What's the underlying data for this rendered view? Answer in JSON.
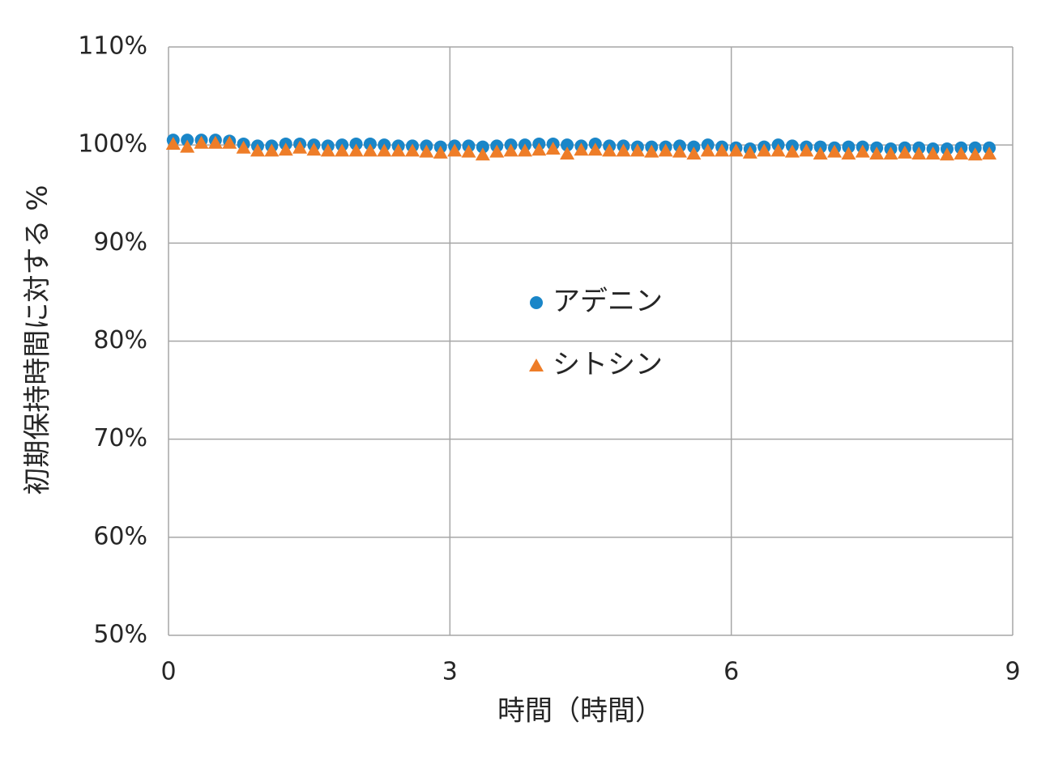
{
  "chart_data": {
    "type": "scatter",
    "x_label": "時間（時間）",
    "y_label": "初期保持時間に対する %",
    "x": [
      0.05,
      0.2,
      0.35,
      0.5,
      0.65,
      0.8,
      0.95,
      1.1,
      1.25,
      1.4,
      1.55,
      1.7,
      1.85,
      2.0,
      2.15,
      2.3,
      2.45,
      2.6,
      2.75,
      2.9,
      3.05,
      3.2,
      3.35,
      3.5,
      3.65,
      3.8,
      3.95,
      4.1,
      4.25,
      4.4,
      4.55,
      4.7,
      4.85,
      5.0,
      5.15,
      5.3,
      5.45,
      5.6,
      5.75,
      5.9,
      6.05,
      6.2,
      6.35,
      6.5,
      6.65,
      6.8,
      6.95,
      7.1,
      7.25,
      7.4,
      7.55,
      7.7,
      7.85,
      8.0,
      8.15,
      8.3,
      8.45,
      8.6,
      8.75
    ],
    "series": [
      {
        "name": "アデニン",
        "color": "#1a86c8",
        "marker": "circle",
        "values": [
          100.5,
          100.5,
          100.5,
          100.5,
          100.4,
          100.1,
          99.9,
          99.9,
          100.1,
          100.1,
          100.0,
          99.9,
          100.0,
          100.1,
          100.1,
          100.0,
          99.9,
          99.9,
          99.9,
          99.8,
          99.9,
          99.9,
          99.8,
          99.9,
          100.0,
          100.0,
          100.1,
          100.1,
          100.0,
          99.9,
          100.1,
          99.9,
          99.9,
          99.8,
          99.8,
          99.8,
          99.9,
          99.8,
          100.0,
          99.8,
          99.7,
          99.6,
          99.8,
          100.0,
          99.9,
          99.8,
          99.8,
          99.7,
          99.8,
          99.8,
          99.7,
          99.6,
          99.7,
          99.7,
          99.6,
          99.6,
          99.7,
          99.7,
          99.7
        ]
      },
      {
        "name": "シトシン",
        "color": "#ee7d28",
        "marker": "triangle",
        "values": [
          100.1,
          99.8,
          100.2,
          100.2,
          100.2,
          99.7,
          99.4,
          99.4,
          99.5,
          99.7,
          99.5,
          99.4,
          99.4,
          99.4,
          99.4,
          99.4,
          99.4,
          99.4,
          99.3,
          99.2,
          99.4,
          99.3,
          99.0,
          99.3,
          99.4,
          99.4,
          99.5,
          99.6,
          99.1,
          99.5,
          99.5,
          99.4,
          99.4,
          99.4,
          99.3,
          99.4,
          99.3,
          99.1,
          99.4,
          99.4,
          99.4,
          99.2,
          99.4,
          99.4,
          99.3,
          99.4,
          99.1,
          99.3,
          99.1,
          99.3,
          99.1,
          99.1,
          99.2,
          99.1,
          99.1,
          99.0,
          99.1,
          99.0,
          99.1
        ]
      }
    ],
    "xlim": [
      0,
      9
    ],
    "xticks": [
      0,
      3,
      6,
      9
    ],
    "ylim": [
      50,
      110
    ],
    "yticks": [
      {
        "value": 50,
        "label": "50%"
      },
      {
        "value": 60,
        "label": "60%"
      },
      {
        "value": 70,
        "label": "70%"
      },
      {
        "value": 80,
        "label": "80%"
      },
      {
        "value": 90,
        "label": "90%"
      },
      {
        "value": 100,
        "label": "100%"
      },
      {
        "value": 110,
        "label": "110%"
      }
    ],
    "grid": true,
    "legend": "center"
  }
}
